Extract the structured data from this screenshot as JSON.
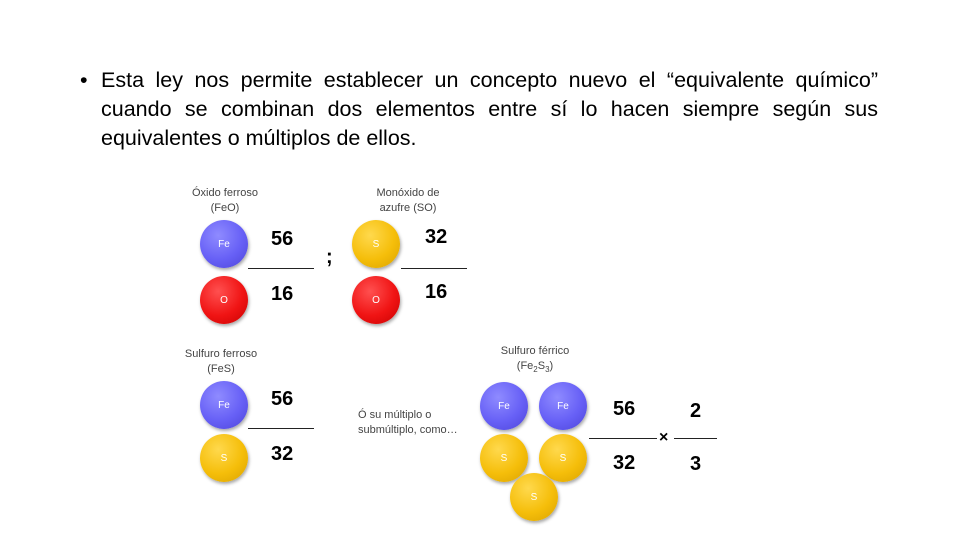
{
  "bullet": {
    "mark": "•",
    "text": "Esta ley nos permite establecer un concepto nuevo el “equivalente químico” cuando se combinan dos elementos entre sí lo hacen siempre según sus equivalentes o múltiplos de ellos."
  },
  "examples": {
    "feo": {
      "name": "Óxido ferroso",
      "formula": "(FeO)",
      "top_atom": "Fe",
      "bottom_atom": "O",
      "numerator": "56",
      "denominator": "16"
    },
    "separator": ";",
    "so": {
      "name": "Monóxido de",
      "name2": "azufre (SO)",
      "top_atom": "S",
      "bottom_atom": "O",
      "numerator": "32",
      "denominator": "16"
    },
    "fes": {
      "name": "Sulfuro ferroso",
      "formula": "(FeS)",
      "top_atom": "Fe",
      "bottom_atom": "S",
      "numerator": "56",
      "denominator": "32"
    },
    "note": {
      "line1": "Ó su múltiplo o",
      "line2": "submúltiplo, como…"
    },
    "fe2s3": {
      "name": "Sulfuro férrico",
      "formula_open": "(Fe",
      "sub1": "2",
      "formula_mid": "S",
      "sub2": "3",
      "formula_close": ")",
      "atoms_top": [
        "Fe",
        "Fe"
      ],
      "atoms_mid": [
        "S",
        "S"
      ],
      "atom_bottom": "S",
      "numerator": "56",
      "denominator": "32",
      "times": "×",
      "mult_numerator": "2",
      "mult_denominator": "3"
    }
  },
  "colors": {
    "iron": "#6760f6",
    "oxygen": "#f01414",
    "sulfur": "#f5be0a"
  }
}
